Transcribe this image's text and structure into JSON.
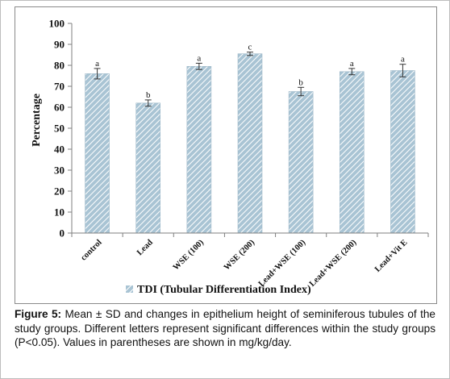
{
  "chart_data": {
    "type": "bar",
    "categories": [
      "control",
      "Lead",
      "WSE (100)",
      "WSE (200)",
      "Lead+WSE (100)",
      "Lead+WSE (200)",
      "Lead+Vit E"
    ],
    "series": [
      {
        "name": "TDI (Tubular Differentiation Index)",
        "values": [
          76,
          62,
          79.5,
          85.5,
          67.5,
          77,
          77.5
        ],
        "errors": [
          2.5,
          1.5,
          1.5,
          0.8,
          2,
          1.5,
          3
        ],
        "letters": [
          "a",
          "b",
          "a",
          "c",
          "b",
          "a",
          "a"
        ]
      }
    ],
    "ylabel": "Percentage",
    "xlabel": "",
    "ylim": [
      0,
      100
    ],
    "yticks": [
      0,
      10,
      20,
      30,
      40,
      50,
      60,
      70,
      80,
      90,
      100
    ],
    "grid": false,
    "legend": "bottom",
    "colors": {
      "bar_fill": "#a9c4d4",
      "bar_hatch": "#ffffff",
      "axis": "#7f7f7f"
    }
  },
  "caption": {
    "label": "Figure 5:",
    "text": "Mean ± SD and changes in epithelium height of seminiferous tubules of the study groups. Different letters represent significant differences within the study groups (P<0.05). Values in parentheses are shown in mg/kg/day."
  }
}
